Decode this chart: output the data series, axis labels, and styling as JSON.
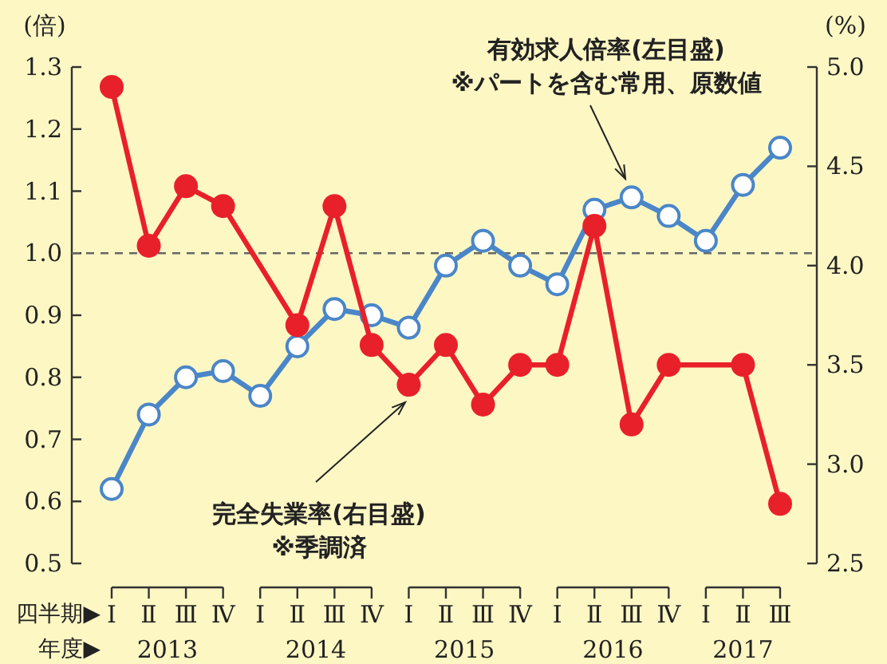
{
  "chart_data": {
    "type": "line",
    "ylabel": "(倍)",
    "y2label": "(%)",
    "categories": [
      "Ⅰ",
      "Ⅱ",
      "Ⅲ",
      "Ⅳ",
      "Ⅰ",
      "Ⅱ",
      "Ⅲ",
      "Ⅳ",
      "Ⅰ",
      "Ⅱ",
      "Ⅲ",
      "Ⅳ",
      "Ⅰ",
      "Ⅱ",
      "Ⅲ",
      "Ⅳ",
      "Ⅰ",
      "Ⅱ",
      "Ⅲ"
    ],
    "series": [
      {
        "color": "#4a86c8",
        "marker": "circle",
        "values": [
          0.62,
          0.74,
          0.8,
          0.81,
          0.77,
          0.85,
          0.91,
          0.9,
          0.88,
          0.98,
          1.02,
          0.98,
          0.95,
          1.07,
          1.09,
          1.06,
          1.02,
          1.11,
          1.17
        ]
      },
      {
        "color": "#e8202a",
        "axis": "y2",
        "marker": "circle",
        "values": [
          4.9,
          4.1,
          4.4,
          4.3,
          null,
          3.7,
          4.3,
          3.6,
          3.4,
          3.6,
          3.3,
          3.5,
          3.5,
          4.2,
          3.2,
          3.5,
          null,
          3.5,
          2.8
        ]
      }
    ],
    "ylim": [
      0.5,
      1.3
    ],
    "yticks": [
      0.5,
      0.6,
      0.7,
      0.8,
      0.9,
      {
        "value": 1,
        "label": "1.0"
      },
      1.1,
      1.2,
      1.3
    ],
    "y2lim": [
      2.5,
      5.0
    ],
    "y2ticks": [
      2.5,
      {
        "value": 3,
        "label": "3.0"
      },
      3.5,
      {
        "value": 4,
        "label": "4.0"
      },
      4.5,
      {
        "value": 5,
        "label": "5.0"
      }
    ],
    "ref_lines": [
      {
        "axis": "y",
        "value": 1.0,
        "color": "#666666",
        "line_style": "dashed"
      }
    ],
    "annotations": [
      "有効求人倍率(左目盛)",
      "※パートを含む常用、原数値",
      "完全失業率(右目盛)",
      "※季調済",
      "四半期▶",
      "年度▶",
      "2013",
      "2014",
      "2015",
      "2016",
      "2017"
    ],
    "grid": false
  }
}
